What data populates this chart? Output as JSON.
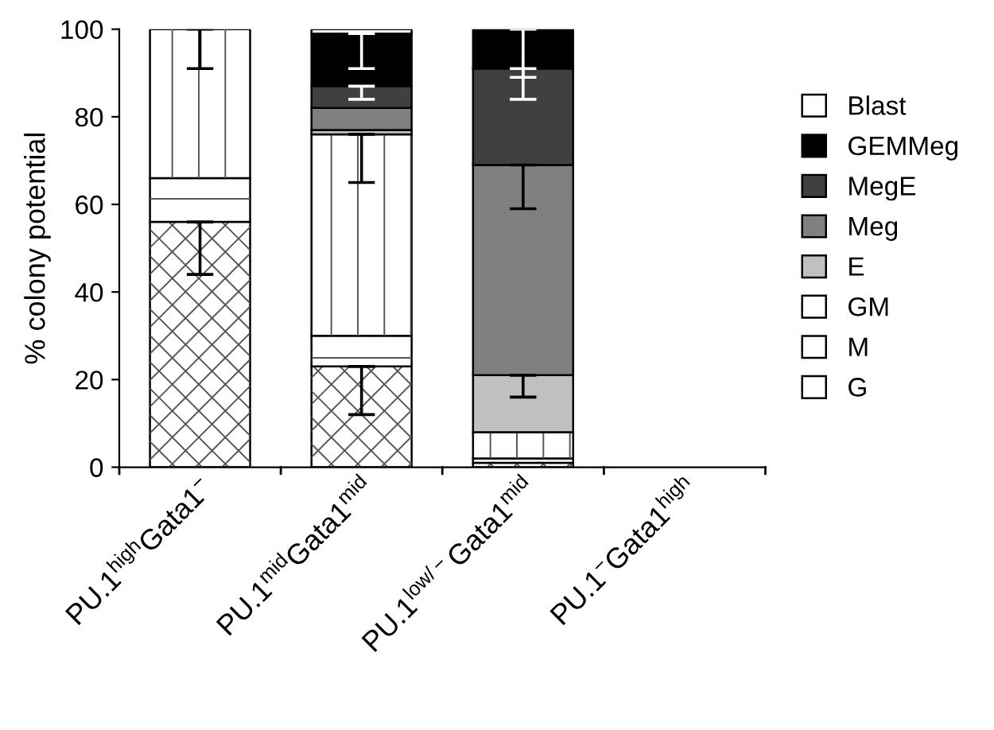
{
  "chart_data": {
    "type": "bar",
    "stacked": true,
    "ylabel": "% colony potential",
    "categories": [
      "PU.1$^{high}$Gata1$^{−}$",
      "PU.1$^{mid}$Gata1$^{mid}$",
      "PU.1$^{low/−}$Gata1$^{mid}$",
      "PU.1$^{−}$Gata1$^{high}$"
    ],
    "series": [
      {
        "name": "G",
        "color": "#ffffff",
        "values": [
          56,
          23,
          1,
          0
        ],
        "errors": [
          [
            44,
            56
          ],
          [
            12,
            23
          ],
          null,
          null
        ]
      },
      {
        "name": "M",
        "color": "#ffffff",
        "values": [
          10,
          7,
          1,
          0
        ],
        "errors": [
          null,
          null,
          null,
          null
        ]
      },
      {
        "name": "GM",
        "color": "#ffffff",
        "values": [
          34,
          46,
          6,
          0
        ],
        "errors": [
          [
            91,
            100
          ],
          [
            65,
            76
          ],
          null,
          null
        ]
      },
      {
        "name": "E",
        "color": "#c0c0c0",
        "values": [
          0,
          1,
          13,
          0
        ],
        "errors": [
          null,
          null,
          [
            16,
            21
          ],
          null
        ]
      },
      {
        "name": "Meg",
        "color": "#808080",
        "values": [
          0,
          5,
          48,
          0
        ],
        "errors": [
          null,
          null,
          [
            59,
            69
          ],
          null
        ]
      },
      {
        "name": "MegE",
        "color": "#404040",
        "values": [
          0,
          5,
          22,
          0
        ],
        "errors": [
          null,
          [
            84,
            87
          ],
          [
            84,
            91
          ],
          null
        ]
      },
      {
        "name": "GEMMeg",
        "color": "#000000",
        "values": [
          0,
          12,
          9,
          0
        ],
        "errors": [
          null,
          [
            91,
            99
          ],
          [
            89,
            100
          ],
          null
        ]
      },
      {
        "name": "Blast",
        "color": "#ffffff",
        "values": [
          0,
          1,
          0,
          0
        ],
        "errors": [
          null,
          null,
          null,
          null
        ]
      }
    ],
    "ylim": [
      0,
      100
    ],
    "yticks": [
      0,
      20,
      40,
      60,
      80,
      100
    ],
    "grid": false,
    "legend": "right"
  }
}
